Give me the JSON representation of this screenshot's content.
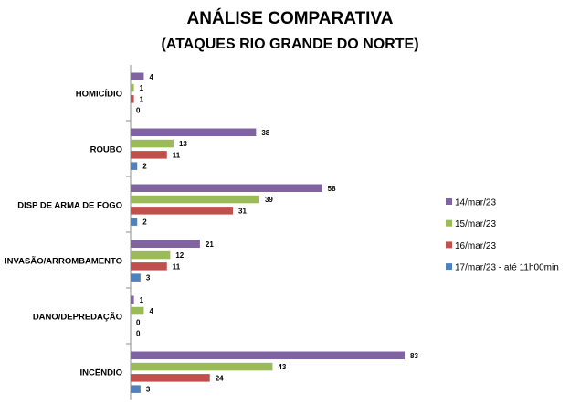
{
  "chart_data": {
    "type": "bar",
    "orientation": "horizontal",
    "title": "ANÁLISE COMPARATIVA",
    "subtitle": "(ATAQUES RIO GRANDE DO NORTE)",
    "categories": [
      "HOMICÍDIO",
      "ROUBO",
      "DISP DE ARMA DE FOGO",
      "INVASÃO/ARROMBAMENTO",
      "DANO/DEPREDAÇÃO",
      "INCÊNDIO"
    ],
    "series": [
      {
        "name": "14/mar/23",
        "color": "#8064A2",
        "values": [
          4,
          38,
          58,
          21,
          1,
          83
        ]
      },
      {
        "name": "15/mar/23",
        "color": "#9BBB59",
        "values": [
          1,
          13,
          39,
          12,
          4,
          43
        ]
      },
      {
        "name": "16/mar/23",
        "color": "#C0504D",
        "values": [
          1,
          11,
          31,
          11,
          0,
          24
        ]
      },
      {
        "name": "17/mar/23 - até 11h00min",
        "color": "#4F81BD",
        "values": [
          0,
          2,
          2,
          3,
          0,
          3
        ]
      }
    ],
    "xlim": [
      0,
      83
    ],
    "legend_position": "right",
    "data_labels": true,
    "grid": false
  }
}
